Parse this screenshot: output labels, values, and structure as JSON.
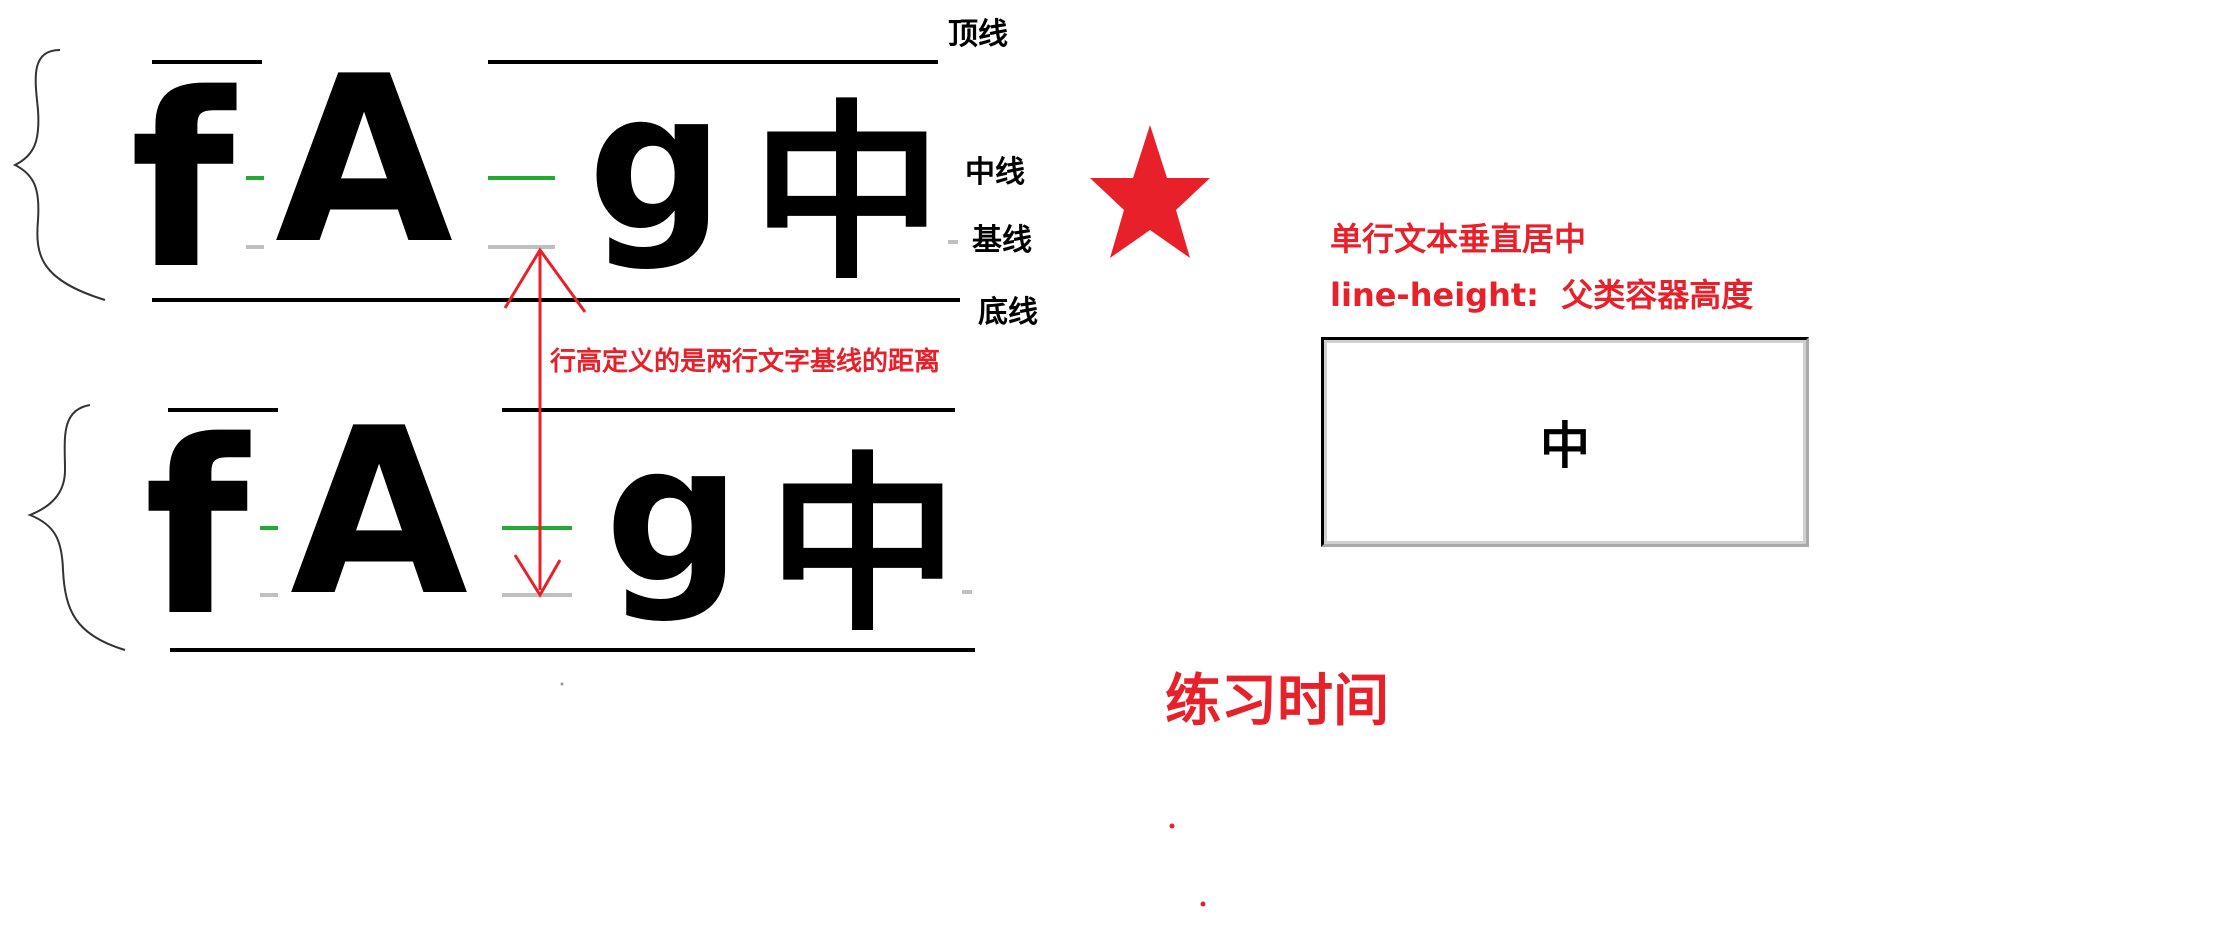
{
  "glyphs": [
    "f",
    "A",
    "g",
    "中"
  ],
  "line_labels": {
    "top": "顶线",
    "middle": "中线",
    "baseline": "基线",
    "bottom": "底线"
  },
  "line_height_note": "行高定义的是两行文字基线的距离",
  "centering": {
    "title": "单行文本垂直居中",
    "rule": "line-height:  父类容器高度",
    "box_text": "中"
  },
  "practice_title": "练习时间",
  "colors": {
    "red": "#e8202a",
    "green": "#22aa33",
    "gray": "#c0c0c0",
    "black": "#000000"
  },
  "icons": [
    "brace-icon",
    "star-icon",
    "double-arrow-icon"
  ]
}
